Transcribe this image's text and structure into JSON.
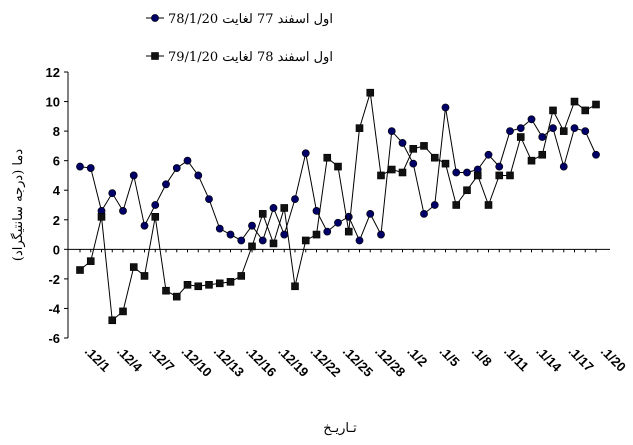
{
  "chart_data": {
    "type": "line",
    "y_label": "دما (درجه سانتيگراد)",
    "x_label": "تـاريـخ",
    "categories": [
      ".12/1",
      null,
      null,
      ".12/4",
      null,
      null,
      ".12/7",
      null,
      null,
      ".12/10",
      null,
      null,
      ".12/13",
      null,
      null,
      ".12/16",
      null,
      null,
      ".12/19",
      null,
      null,
      ".12/22",
      null,
      null,
      ".12/25",
      null,
      null,
      ".12/28",
      null,
      null,
      ".1/2",
      null,
      null,
      ".1/5",
      null,
      null,
      ".1/8",
      null,
      null,
      ".1/11",
      null,
      null,
      ".1/14",
      null,
      null,
      ".1/17",
      null,
      null,
      ".1/20"
    ],
    "series": [
      {
        "name": "اول اسفند 77 لغايت 78/1/20",
        "color": "#000066",
        "marker": "circle",
        "values": [
          5.6,
          5.5,
          2.6,
          3.8,
          2.6,
          5.0,
          1.6,
          3.0,
          4.4,
          5.5,
          6.0,
          5.0,
          3.4,
          1.4,
          1.0,
          0.6,
          1.6,
          0.6,
          2.8,
          1.0,
          3.4,
          6.5,
          2.6,
          1.2,
          1.8,
          2.2,
          0.6,
          2.4,
          1.0,
          8.0,
          7.2,
          5.8,
          2.4,
          3.0,
          9.6,
          5.2,
          5.2,
          5.4,
          6.4,
          5.6,
          8.0,
          8.2,
          8.8,
          7.6,
          8.2,
          5.6,
          8.2,
          8.0,
          6.4
        ]
      },
      {
        "name": "اول اسفند 78 لغايت 79/1/20",
        "color": "#111111",
        "marker": "square",
        "values": [
          -1.4,
          -0.8,
          2.2,
          -4.8,
          -4.2,
          -1.2,
          -1.8,
          2.2,
          -2.8,
          -3.2,
          -2.4,
          -2.5,
          -2.4,
          -2.3,
          -2.2,
          -1.8,
          0.2,
          2.4,
          0.4,
          2.8,
          -2.5,
          0.6,
          1.0,
          6.2,
          5.6,
          1.2,
          8.2,
          10.6,
          5.0,
          5.4,
          5.2,
          6.8,
          7.0,
          6.2,
          5.8,
          3.0,
          4.0,
          5.0,
          3.0,
          5.0,
          5.0,
          7.6,
          6.0,
          6.4,
          9.4,
          8.0,
          10.0,
          9.4,
          9.8
        ]
      }
    ],
    "ylim": [
      -6,
      12
    ],
    "yticks": [
      -6,
      -4,
      -2,
      0,
      2,
      4,
      6,
      8,
      10,
      12
    ]
  }
}
